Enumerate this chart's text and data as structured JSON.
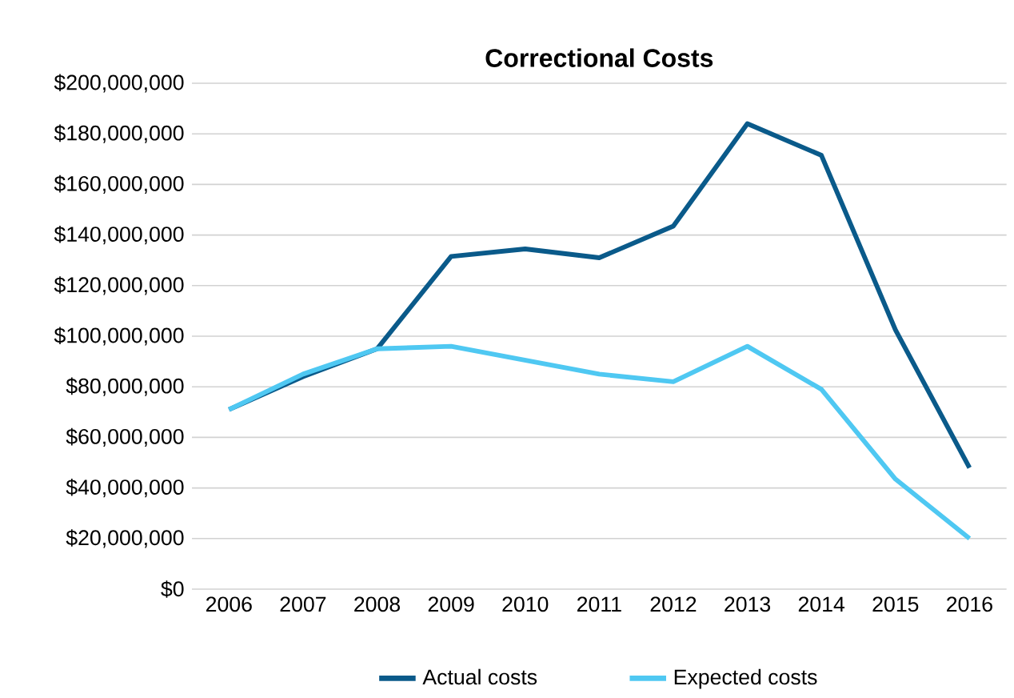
{
  "chart_data": {
    "type": "line",
    "title": "Correctional Costs",
    "categories": [
      "2006",
      "2007",
      "2008",
      "2009",
      "2010",
      "2011",
      "2012",
      "2013",
      "2014",
      "2015",
      "2016"
    ],
    "series": [
      {
        "name": "Actual costs",
        "color": "#0a5a8a",
        "values": [
          71000000,
          84000000,
          95000000,
          131500000,
          134500000,
          131000000,
          143500000,
          184000000,
          171500000,
          102500000,
          48000000
        ]
      },
      {
        "name": "Expected costs",
        "color": "#4fc8f2",
        "values": [
          71000000,
          85000000,
          95000000,
          96000000,
          90500000,
          85000000,
          82000000,
          96000000,
          79000000,
          43500000,
          20000000
        ]
      }
    ],
    "ylim": [
      0,
      200000000
    ],
    "yticks": [
      {
        "value": 0,
        "label": "$0"
      },
      {
        "value": 20000000,
        "label": "$20,000,000"
      },
      {
        "value": 40000000,
        "label": "$40,000,000"
      },
      {
        "value": 60000000,
        "label": "$60,000,000"
      },
      {
        "value": 80000000,
        "label": "$80,000,000"
      },
      {
        "value": 100000000,
        "label": "$100,000,000"
      },
      {
        "value": 120000000,
        "label": "$120,000,000"
      },
      {
        "value": 140000000,
        "label": "$140,000,000"
      },
      {
        "value": 160000000,
        "label": "$160,000,000"
      },
      {
        "value": 180000000,
        "label": "$180,000,000"
      },
      {
        "value": 200000000,
        "label": "$200,000,000"
      }
    ],
    "grid": "y",
    "legend": "bottom",
    "marker": "none",
    "line_style": "solid"
  }
}
